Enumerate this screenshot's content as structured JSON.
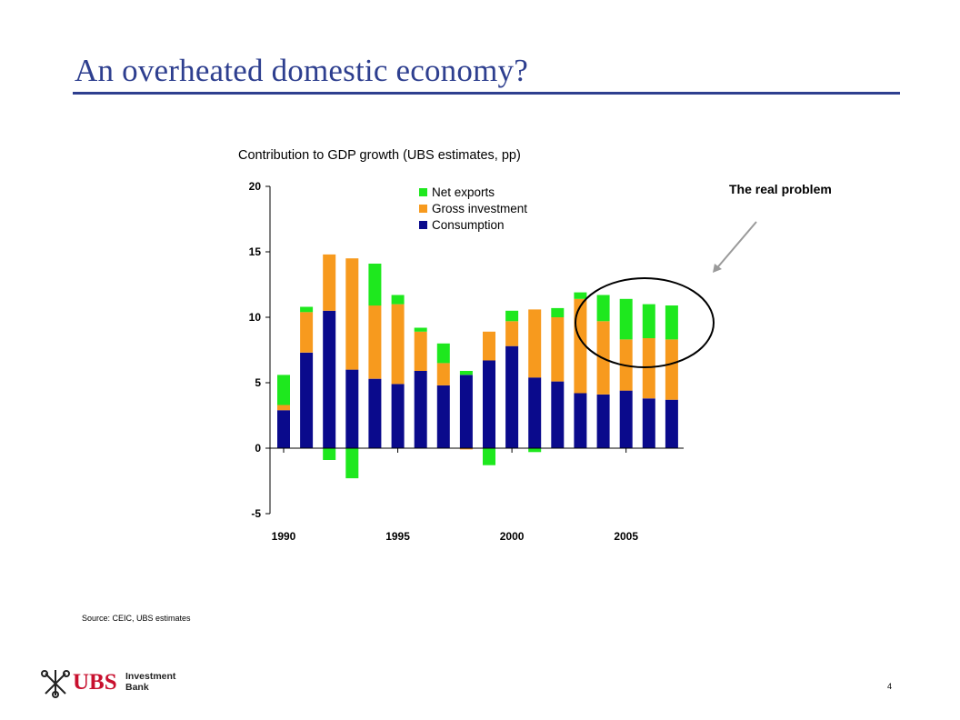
{
  "slide": {
    "title": "An overheated domestic economy?",
    "callout": "The real problem",
    "source": "Source: CEIC, UBS estimates",
    "page_number": "4"
  },
  "logo": {
    "word": "UBS",
    "line1": "Investment",
    "line2": "Bank",
    "color": "#c8102e"
  },
  "colors": {
    "title": "#2e3f8f",
    "net_exports": "#1ee81e",
    "gross_investment": "#f79a1e",
    "consumption": "#0a0a8c"
  },
  "chart_data": {
    "type": "bar",
    "stacked": true,
    "title": "Contribution to GDP growth (UBS estimates, pp)",
    "xlabel": "",
    "ylabel": "",
    "ylim": [
      -5,
      20
    ],
    "yticks": [
      -5,
      0,
      5,
      10,
      15,
      20
    ],
    "xticks": [
      "1990",
      "1995",
      "2000",
      "2005"
    ],
    "categories": [
      "1990",
      "1991",
      "1992",
      "1993",
      "1994",
      "1995",
      "1996",
      "1997",
      "1998",
      "1999",
      "2000",
      "2001",
      "2002",
      "2003",
      "2004",
      "2005",
      "2006",
      "2007"
    ],
    "legend_position": "top",
    "series": [
      {
        "name": "Net exports",
        "color": "#1ee81e",
        "values": [
          2.3,
          0.4,
          -0.9,
          -2.3,
          3.2,
          0.7,
          0.3,
          1.5,
          0.3,
          -1.3,
          0.8,
          -0.3,
          0.7,
          0.5,
          2.0,
          3.1,
          2.6,
          2.6
        ]
      },
      {
        "name": "Gross investment",
        "color": "#f79a1e",
        "values": [
          0.4,
          3.1,
          4.3,
          8.5,
          5.6,
          6.1,
          3.0,
          1.7,
          -0.1,
          2.2,
          1.9,
          5.2,
          4.9,
          7.2,
          5.6,
          3.9,
          4.6,
          4.6
        ]
      },
      {
        "name": "Consumption",
        "color": "#0a0a8c",
        "values": [
          2.9,
          7.3,
          10.5,
          6.0,
          5.3,
          4.9,
          5.9,
          4.8,
          5.6,
          6.7,
          7.8,
          5.4,
          5.1,
          4.2,
          4.1,
          4.4,
          3.8,
          3.7
        ]
      }
    ]
  }
}
